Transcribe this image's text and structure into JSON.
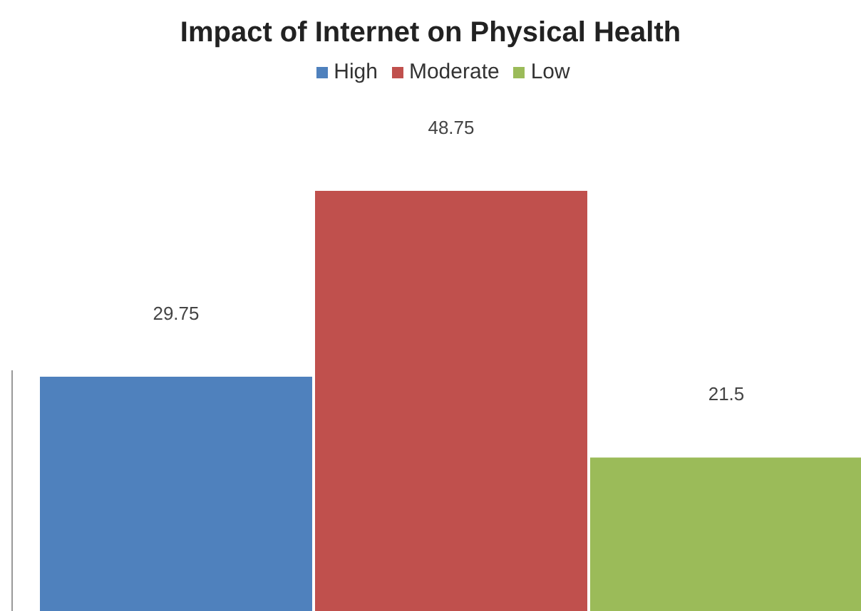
{
  "chart_data": {
    "type": "bar",
    "title": "Impact of Internet on Physical Health",
    "categories": [
      null
    ],
    "series": [
      {
        "name": "High",
        "color": "#4f81bd",
        "values": [
          29.75
        ]
      },
      {
        "name": "Moderate",
        "color": "#c0504d",
        "values": [
          48.75
        ]
      },
      {
        "name": "Low",
        "color": "#9bbb59",
        "values": [
          21.5
        ]
      }
    ],
    "data_labels": true,
    "legend": "top",
    "grid": false
  }
}
